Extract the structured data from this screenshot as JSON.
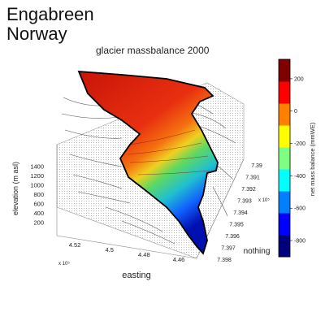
{
  "heading": {
    "line1": "Engabreen",
    "line2": "Norway"
  },
  "chart_data": {
    "type": "surface3d",
    "title": "glacier massbalance 2000",
    "xlabel": "easting",
    "ylabel": "nothing",
    "zlabel": "elevation (m asl)",
    "x_scale_label": "x 10⁵",
    "y_scale_label": "x 10⁵",
    "x_ticks": [
      "4.52",
      "4.5",
      "4.48",
      "4.46"
    ],
    "y_ticks": [
      "7.39",
      "7.391",
      "7.392",
      "7.393",
      "7.394",
      "7.395",
      "7.396",
      "7.397",
      "7.398"
    ],
    "z_ticks": [
      "200",
      "400",
      "600",
      "800",
      "1000",
      "1200",
      "1400"
    ],
    "colorbar": {
      "label": "net mass balance (mmWE)",
      "ticks": [
        "200",
        "0",
        "-200",
        "-400",
        "-600",
        "-800"
      ],
      "range": [
        -900,
        320
      ],
      "colors": [
        "#00007f",
        "#0000ff",
        "#007fff",
        "#00ffff",
        "#7fff7f",
        "#ffff00",
        "#ff7f00",
        "#ff0000",
        "#7f0000"
      ]
    }
  }
}
